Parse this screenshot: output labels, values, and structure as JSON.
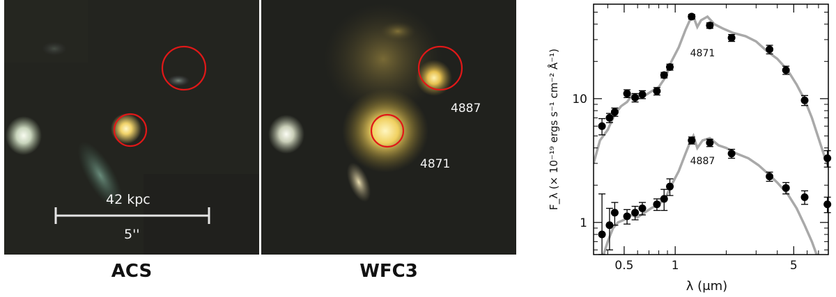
{
  "panels": {
    "acs": {
      "caption": "ACS",
      "scale_kpc": "42 kpc",
      "scale_arcsec": "5''"
    },
    "wfc3": {
      "caption": "WFC3",
      "label_a": "4887",
      "label_b": "4871"
    }
  },
  "colors": {
    "circle": "#e01818",
    "model": "#a9a9a9",
    "points": "#000000"
  },
  "chart_data": {
    "type": "scatter",
    "xlabel": "λ (μm)",
    "ylabel": "F_λ (× 10⁻¹⁹ ergs s⁻¹ cm⁻² Å⁻¹)",
    "xscale": "log",
    "yscale": "log",
    "xlim": [
      0.33,
      8.0
    ],
    "ylim": [
      0.55,
      58
    ],
    "x_ticks": [
      0.5,
      1,
      5
    ],
    "x_tick_labels": [
      "0.5",
      "1",
      "5"
    ],
    "y_ticks": [
      1,
      10
    ],
    "y_tick_labels": [
      "1",
      "10"
    ],
    "grid": false,
    "series": [
      {
        "name": "4871",
        "points": [
          {
            "x": 0.37,
            "y": 6.0,
            "err": 0.9
          },
          {
            "x": 0.41,
            "y": 7.0,
            "err": 0.6
          },
          {
            "x": 0.44,
            "y": 7.8,
            "err": 0.6
          },
          {
            "x": 0.52,
            "y": 11.0,
            "err": 0.8
          },
          {
            "x": 0.58,
            "y": 10.2,
            "err": 0.8
          },
          {
            "x": 0.64,
            "y": 10.8,
            "err": 0.8
          },
          {
            "x": 0.78,
            "y": 11.5,
            "err": 0.8
          },
          {
            "x": 0.86,
            "y": 15.5,
            "err": 0.8
          },
          {
            "x": 0.93,
            "y": 18.0,
            "err": 1.0
          },
          {
            "x": 1.25,
            "y": 46.0,
            "err": 2.0
          },
          {
            "x": 1.6,
            "y": 39.0,
            "err": 2.0
          },
          {
            "x": 2.15,
            "y": 31.0,
            "err": 2.0
          },
          {
            "x": 3.6,
            "y": 25.0,
            "err": 2.0
          },
          {
            "x": 4.5,
            "y": 17.0,
            "err": 1.3
          },
          {
            "x": 5.8,
            "y": 9.7,
            "err": 0.9
          },
          {
            "x": 7.9,
            "y": 3.3,
            "err": 0.5
          }
        ],
        "model": [
          [
            0.33,
            3.0
          ],
          [
            0.36,
            4.6
          ],
          [
            0.4,
            5.6
          ],
          [
            0.44,
            7.5
          ],
          [
            0.48,
            8.7
          ],
          [
            0.52,
            9.4
          ],
          [
            0.56,
            10.8
          ],
          [
            0.6,
            10.0
          ],
          [
            0.65,
            10.4
          ],
          [
            0.72,
            11.4
          ],
          [
            0.8,
            12.4
          ],
          [
            0.88,
            15.0
          ],
          [
            0.95,
            20.0
          ],
          [
            1.05,
            26.0
          ],
          [
            1.15,
            36.0
          ],
          [
            1.22,
            43.0
          ],
          [
            1.28,
            46.0
          ],
          [
            1.35,
            38.0
          ],
          [
            1.42,
            43.0
          ],
          [
            1.55,
            46.0
          ],
          [
            1.7,
            40.0
          ],
          [
            1.9,
            37.0
          ],
          [
            2.2,
            34.0
          ],
          [
            2.6,
            32.0
          ],
          [
            3.0,
            29.0
          ],
          [
            3.5,
            24.0
          ],
          [
            4.0,
            21.0
          ],
          [
            4.6,
            17.0
          ],
          [
            5.2,
            13.0
          ],
          [
            5.8,
            9.8
          ],
          [
            6.4,
            7.0
          ],
          [
            7.0,
            4.8
          ],
          [
            7.6,
            3.4
          ],
          [
            8.0,
            2.8
          ]
        ],
        "label": "4871"
      },
      {
        "name": "4887",
        "points": [
          {
            "x": 0.37,
            "y": 0.8,
            "err": 0.9
          },
          {
            "x": 0.41,
            "y": 0.95,
            "err": 0.35
          },
          {
            "x": 0.44,
            "y": 1.2,
            "err": 0.25
          },
          {
            "x": 0.52,
            "y": 1.12,
            "err": 0.15
          },
          {
            "x": 0.58,
            "y": 1.2,
            "err": 0.15
          },
          {
            "x": 0.64,
            "y": 1.3,
            "err": 0.15
          },
          {
            "x": 0.78,
            "y": 1.4,
            "err": 0.15
          },
          {
            "x": 0.86,
            "y": 1.55,
            "err": 0.3
          },
          {
            "x": 0.93,
            "y": 1.95,
            "err": 0.3
          },
          {
            "x": 1.25,
            "y": 4.6,
            "err": 0.3
          },
          {
            "x": 1.6,
            "y": 4.4,
            "err": 0.3
          },
          {
            "x": 2.15,
            "y": 3.6,
            "err": 0.3
          },
          {
            "x": 3.6,
            "y": 2.35,
            "err": 0.2
          },
          {
            "x": 4.5,
            "y": 1.9,
            "err": 0.2
          },
          {
            "x": 5.8,
            "y": 1.6,
            "err": 0.2
          },
          {
            "x": 7.9,
            "y": 1.4,
            "err": 0.2
          }
        ],
        "model": [
          [
            0.37,
            0.5
          ],
          [
            0.4,
            0.7
          ],
          [
            0.43,
            0.9
          ],
          [
            0.46,
            1.0
          ],
          [
            0.5,
            1.05
          ],
          [
            0.55,
            1.15
          ],
          [
            0.6,
            1.1
          ],
          [
            0.66,
            1.2
          ],
          [
            0.72,
            1.3
          ],
          [
            0.8,
            1.4
          ],
          [
            0.88,
            1.6
          ],
          [
            0.95,
            2.0
          ],
          [
            1.05,
            2.6
          ],
          [
            1.15,
            3.6
          ],
          [
            1.22,
            4.4
          ],
          [
            1.28,
            5.0
          ],
          [
            1.35,
            4.0
          ],
          [
            1.45,
            4.6
          ],
          [
            1.6,
            4.8
          ],
          [
            1.8,
            4.2
          ],
          [
            2.0,
            4.0
          ],
          [
            2.3,
            3.6
          ],
          [
            2.7,
            3.3
          ],
          [
            3.1,
            2.9
          ],
          [
            3.5,
            2.5
          ],
          [
            4.0,
            2.1
          ],
          [
            4.6,
            1.7
          ],
          [
            5.2,
            1.3
          ],
          [
            5.8,
            0.95
          ],
          [
            6.4,
            0.7
          ],
          [
            7.0,
            0.5
          ]
        ],
        "label": "4887"
      }
    ]
  }
}
